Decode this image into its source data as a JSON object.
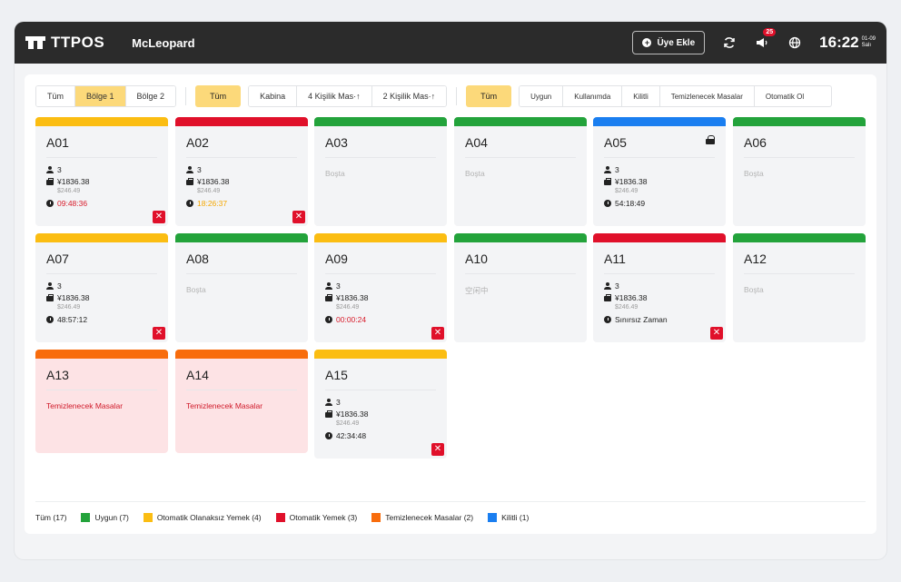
{
  "header": {
    "brand": "TTPOS",
    "store": "McLeopard",
    "member_button": "Üye Ekle",
    "notif_count": "25",
    "time": "16:22",
    "date": "01-09",
    "weekday": "Salı",
    "icons": [
      "refresh-icon",
      "speaker-icon",
      "globe-icon"
    ]
  },
  "filters": {
    "regions": [
      {
        "label": "Tüm",
        "active": false
      },
      {
        "label": "Bölge 1",
        "active": true
      },
      {
        "label": "Bölge 2",
        "active": false
      }
    ],
    "types_all": "Tüm",
    "types": [
      "Kabina",
      "4 Kişilik Mas·↑",
      "2 Kişilik Mas·↑"
    ],
    "status_all": "Tüm",
    "statuses": [
      "Uygun",
      "Kullanımda",
      "Kilitli",
      "Temizlenecek Masalar",
      "Otomatik Ol"
    ]
  },
  "tables": [
    {
      "name": "A01",
      "color": "#fbbd12",
      "state": "busy",
      "guests": "3",
      "amount": "¥1836.38",
      "sub": "$246.49",
      "time": "09:48:36",
      "time_style": "red",
      "close": true
    },
    {
      "name": "A02",
      "color": "#e0102a",
      "state": "busy",
      "guests": "3",
      "amount": "¥1836.38",
      "sub": "$246.49",
      "time": "18:26:37",
      "time_style": "orange",
      "close": true
    },
    {
      "name": "A03",
      "color": "#23a33b",
      "state": "idle",
      "status": "Boşta"
    },
    {
      "name": "A04",
      "color": "#23a33b",
      "state": "idle",
      "status": "Boşta"
    },
    {
      "name": "A05",
      "color": "#1a7ef0",
      "state": "busy",
      "guests": "3",
      "amount": "¥1836.38",
      "sub": "$246.49",
      "time": "54:18:49",
      "time_style": "",
      "close": false,
      "locked": true
    },
    {
      "name": "A06",
      "color": "#23a33b",
      "state": "idle",
      "status": "Boşta"
    },
    {
      "name": "A07",
      "color": "#fbbd12",
      "state": "busy",
      "guests": "3",
      "amount": "¥1836.38",
      "sub": "$246.49",
      "time": "48:57:12",
      "time_style": "",
      "close": true
    },
    {
      "name": "A08",
      "color": "#23a33b",
      "state": "idle",
      "status": "Boşta"
    },
    {
      "name": "A09",
      "color": "#fbbd12",
      "state": "busy",
      "guests": "3",
      "amount": "¥1836.38",
      "sub": "$246.49",
      "time": "00:00:24",
      "time_style": "red",
      "close": true
    },
    {
      "name": "A10",
      "color": "#23a33b",
      "state": "idle",
      "status": "空闲中"
    },
    {
      "name": "A11",
      "color": "#e0102a",
      "state": "busy",
      "guests": "3",
      "amount": "¥1836.38",
      "sub": "$246.49",
      "time": "Sınırsız Zaman",
      "time_style": "",
      "close": true
    },
    {
      "name": "A12",
      "color": "#23a33b",
      "state": "idle",
      "status": "Boşta"
    },
    {
      "name": "A13",
      "color": "#f86c0c",
      "state": "clean",
      "status": "Temizlenecek Masalar"
    },
    {
      "name": "A14",
      "color": "#f86c0c",
      "state": "clean",
      "status": "Temizlenecek Masalar"
    },
    {
      "name": "A15",
      "color": "#fbbd12",
      "state": "busy",
      "guests": "3",
      "amount": "¥1836.38",
      "sub": "$246.49",
      "time": "42:34:48",
      "time_style": "",
      "close": true
    }
  ],
  "legend": {
    "total": "Tüm (17)",
    "items": [
      {
        "label": "Uygun (7)",
        "color": "#23a33b"
      },
      {
        "label": "Otomatik Olanaksız Yemek (4)",
        "color": "#fbbd12"
      },
      {
        "label": "Otomatik Yemek (3)",
        "color": "#e0102a"
      },
      {
        "label": "Temizlenecek Masalar (2)",
        "color": "#f86c0c"
      },
      {
        "label": "Kilitli (1)",
        "color": "#1a7ef0"
      }
    ]
  }
}
